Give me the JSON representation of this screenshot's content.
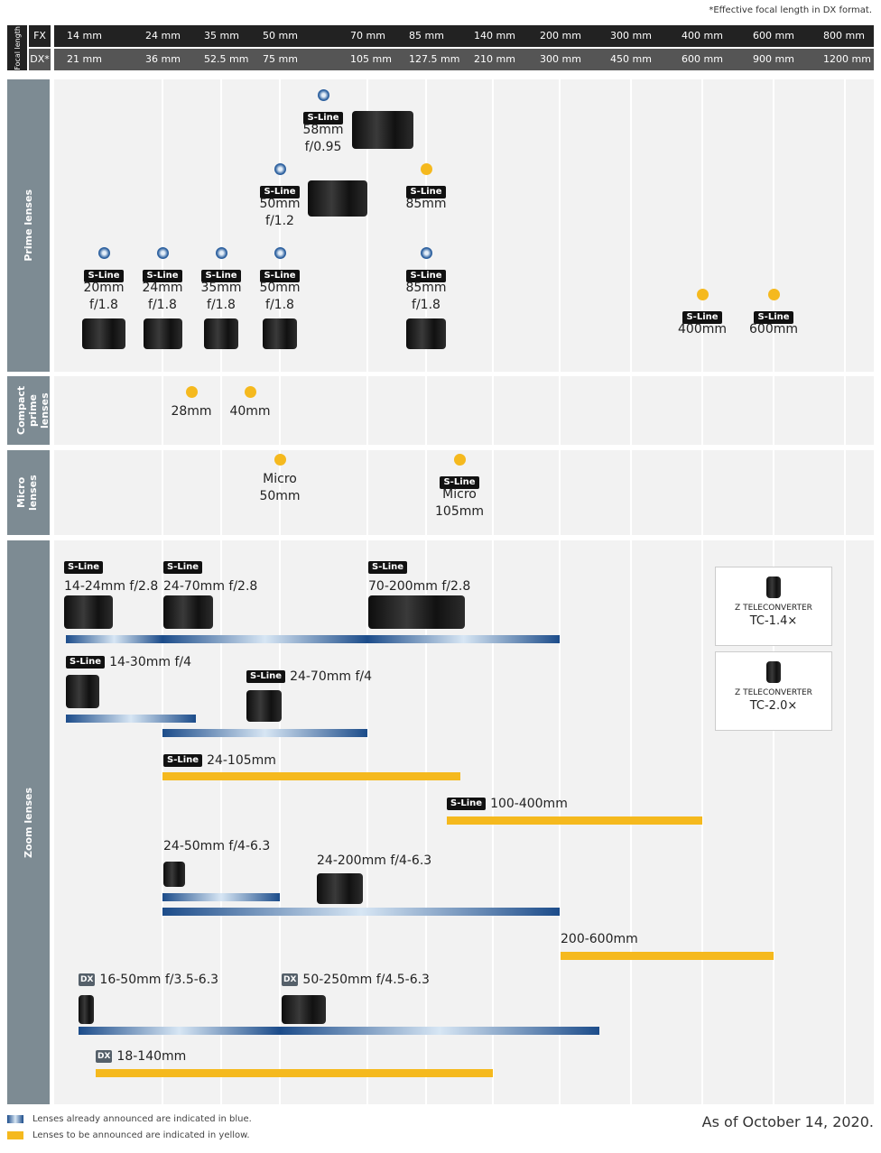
{
  "note": "*Effective focal length in DX format.",
  "header": {
    "label": "Focal length",
    "fx_label": "FX",
    "dx_label": "DX*",
    "fx": [
      "14 mm",
      "24 mm",
      "35 mm",
      "50 mm",
      "70 mm",
      "85 mm",
      "140 mm",
      "200 mm",
      "300 mm",
      "400 mm",
      "600 mm",
      "800 mm"
    ],
    "dx": [
      "21 mm",
      "36 mm",
      "52.5 mm",
      "75 mm",
      "105 mm",
      "127.5 mm",
      "210 mm",
      "300 mm",
      "450 mm",
      "600 mm",
      "900 mm",
      "1200 mm"
    ]
  },
  "sections": [
    "Prime lenses",
    "Compact prime lenses",
    "Micro lenses",
    "Zoom lenses"
  ],
  "prime": [
    {
      "badge": "S-Line",
      "lines": [
        "58mm",
        "f/0.95"
      ],
      "status": "announced"
    },
    {
      "badge": "S-Line",
      "lines": [
        "50mm",
        "f/1.2"
      ],
      "status": "announced"
    },
    {
      "badge": "S-Line",
      "lines": [
        "85mm"
      ],
      "status": "upcoming"
    },
    {
      "badge": "S-Line",
      "lines": [
        "20mm",
        "f/1.8"
      ],
      "status": "announced"
    },
    {
      "badge": "S-Line",
      "lines": [
        "24mm",
        "f/1.8"
      ],
      "status": "announced"
    },
    {
      "badge": "S-Line",
      "lines": [
        "35mm",
        "f/1.8"
      ],
      "status": "announced"
    },
    {
      "badge": "S-Line",
      "lines": [
        "50mm",
        "f/1.8"
      ],
      "status": "announced"
    },
    {
      "badge": "S-Line",
      "lines": [
        "85mm",
        "f/1.8"
      ],
      "status": "announced"
    },
    {
      "badge": "S-Line",
      "lines": [
        "400mm"
      ],
      "status": "upcoming"
    },
    {
      "badge": "S-Line",
      "lines": [
        "600mm"
      ],
      "status": "upcoming"
    }
  ],
  "compact": [
    {
      "lines": [
        "28mm"
      ],
      "status": "upcoming"
    },
    {
      "lines": [
        "40mm"
      ],
      "status": "upcoming"
    }
  ],
  "micro": [
    {
      "lines": [
        "Micro",
        "50mm"
      ],
      "status": "upcoming"
    },
    {
      "badge": "S-Line",
      "lines": [
        "Micro",
        "105mm"
      ],
      "status": "upcoming"
    }
  ],
  "zoom": [
    {
      "badge": "S-Line",
      "name": "14-24mm f/2.8",
      "status": "announced"
    },
    {
      "badge": "S-Line",
      "name": "24-70mm f/2.8",
      "status": "announced"
    },
    {
      "badge": "S-Line",
      "name": "70-200mm f/2.8",
      "status": "announced"
    },
    {
      "badge": "S-Line",
      "name": "14-30mm f/4",
      "status": "announced"
    },
    {
      "badge": "S-Line",
      "name": "24-70mm f/4",
      "status": "announced"
    },
    {
      "badge": "S-Line",
      "name": "24-105mm",
      "status": "upcoming"
    },
    {
      "badge": "S-Line",
      "name": "100-400mm",
      "status": "upcoming"
    },
    {
      "name": "24-50mm f/4-6.3",
      "status": "announced"
    },
    {
      "name": "24-200mm f/4-6.3",
      "status": "announced"
    },
    {
      "name": "200-600mm",
      "status": "upcoming"
    },
    {
      "badge": "DX",
      "name": "16-50mm f/3.5-6.3",
      "status": "announced"
    },
    {
      "badge": "DX",
      "name": "50-250mm f/4.5-6.3",
      "status": "announced"
    },
    {
      "badge": "DX",
      "name": "18-140mm",
      "status": "upcoming"
    }
  ],
  "teleconverters": [
    {
      "title": "Z TELECONVERTER",
      "name": "TC-1.4×"
    },
    {
      "title": "Z TELECONVERTER",
      "name": "TC-2.0×"
    }
  ],
  "legend": [
    "Lenses already announced are indicated in blue.",
    "Lenses to be announced are indicated in yellow."
  ],
  "date": "As of October 14, 2020."
}
